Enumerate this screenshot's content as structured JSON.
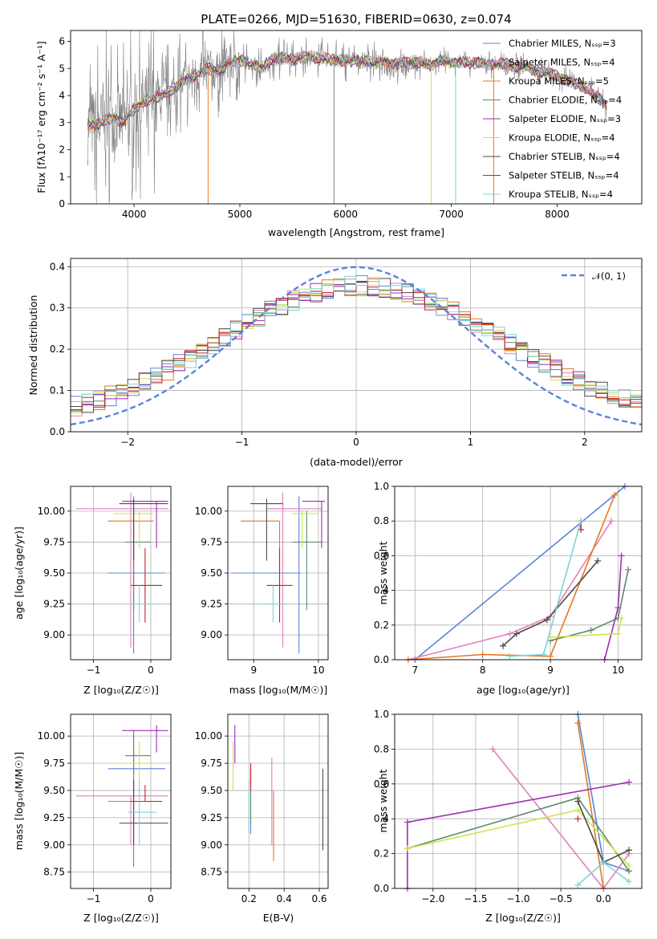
{
  "chart_data": [
    {
      "id": "spectrum",
      "type": "line",
      "title": "PLATE=0266, MJD=51630, FIBERID=0630, z=0.074",
      "xlabel": "wavelength [Angstrom, rest frame]",
      "ylabel": "Flux [fλ10⁻¹⁷ erg cm⁻² s⁻¹ A⁻¹]",
      "xlim": [
        3400,
        8800
      ],
      "ylim": [
        0,
        6.4
      ],
      "xticks": [
        4000,
        5000,
        6000,
        7000,
        8000
      ],
      "yticks": [
        0,
        1,
        2,
        3,
        4,
        5,
        6
      ],
      "continuum": [
        [
          3560,
          2.9
        ],
        [
          3700,
          3.0
        ],
        [
          3800,
          3.2
        ],
        [
          3900,
          3.0
        ],
        [
          4000,
          3.5
        ],
        [
          4100,
          3.8
        ],
        [
          4200,
          3.9
        ],
        [
          4300,
          4.1
        ],
        [
          4400,
          4.3
        ],
        [
          4500,
          4.6
        ],
        [
          4600,
          4.8
        ],
        [
          4700,
          5.0
        ],
        [
          4800,
          4.9
        ],
        [
          4900,
          5.2
        ],
        [
          5000,
          5.3
        ],
        [
          5100,
          5.2
        ],
        [
          5200,
          5.0
        ],
        [
          5300,
          5.3
        ],
        [
          5400,
          5.4
        ],
        [
          5500,
          5.3
        ],
        [
          5600,
          5.45
        ],
        [
          5700,
          5.4
        ],
        [
          5800,
          5.35
        ],
        [
          5900,
          5.3
        ],
        [
          6000,
          5.3
        ],
        [
          6100,
          5.25
        ],
        [
          6200,
          5.3
        ],
        [
          6300,
          5.2
        ],
        [
          6400,
          5.25
        ],
        [
          6500,
          5.15
        ],
        [
          6600,
          5.2
        ],
        [
          6700,
          5.25
        ],
        [
          6800,
          5.1
        ],
        [
          6900,
          5.3
        ],
        [
          7000,
          5.2
        ],
        [
          7100,
          5.25
        ],
        [
          7200,
          5.2
        ],
        [
          7300,
          5.2
        ],
        [
          7400,
          5.15
        ],
        [
          7500,
          5.2
        ],
        [
          7600,
          5.05
        ],
        [
          7700,
          5.05
        ],
        [
          7800,
          4.9
        ],
        [
          7900,
          4.85
        ],
        [
          8000,
          4.7
        ],
        [
          8100,
          4.55
        ],
        [
          8200,
          4.4
        ],
        [
          8300,
          4.2
        ],
        [
          8400,
          3.9
        ],
        [
          8470,
          3.6
        ]
      ],
      "legend": [
        "Chabrier MILES, N_SSP=3",
        "Salpeter MILES, N_SSP=4",
        "Kroupa MILES, N_SSP=5",
        "Chabrier ELODIE, N_SSP=4",
        "Salpeter ELODIE, N_SSP=3",
        "Kroupa ELODIE, N_SSP=4",
        "Chabrier STELIB, N_SSP=4",
        "Salpeter STELIB, N_SSP=4",
        "Kroupa STELIB, N_SSP=4"
      ],
      "legend_placement": "upper-right",
      "grid": false
    },
    {
      "id": "residuals",
      "type": "line",
      "xlabel": "(data-model)/error",
      "ylabel": "Normed distribution",
      "xlim": [
        -2.5,
        2.5
      ],
      "ylim": [
        0,
        0.42
      ],
      "xticks": [
        -2,
        -1,
        0,
        1,
        2
      ],
      "yticks": [
        0.0,
        0.1,
        0.2,
        0.3,
        0.4
      ],
      "gaussian_label": "𝒩(0, 1)",
      "legend_placement": "upper-right",
      "grid": true
    },
    {
      "id": "age_vs_Z",
      "type": "scatter",
      "xlabel": "Z [log₁₀(Z/Z☉)]",
      "ylabel": "age  [log₁₀(age/yr)]",
      "xlim": [
        -1.4,
        0.35
      ],
      "ylim": [
        8.8,
        10.2
      ],
      "xticks": [
        -1,
        0
      ],
      "yticks": [
        9.0,
        9.25,
        9.5,
        9.75,
        10.0
      ],
      "grid": true
    },
    {
      "id": "age_vs_mass",
      "type": "scatter",
      "xlabel": "mass [log₁₀(M/M☉)]",
      "xlim": [
        8.6,
        10.15
      ],
      "ylim": [
        8.8,
        10.2
      ],
      "xticks": [
        9,
        10
      ],
      "yticks": [
        9.0,
        9.25,
        9.5,
        9.75,
        10.0
      ],
      "grid": true
    },
    {
      "id": "weight_vs_age",
      "type": "line",
      "xlabel": "age  [log₁₀(age/yr)]",
      "ylabel": "mass weight",
      "xlim": [
        6.7,
        10.35
      ],
      "ylim": [
        0,
        1.0
      ],
      "xticks": [
        7,
        8,
        9,
        10
      ],
      "yticks": [
        0.0,
        0.2,
        0.4,
        0.6,
        0.8,
        1.0
      ],
      "grid": true
    },
    {
      "id": "mass_vs_Z",
      "type": "scatter",
      "xlabel": "Z [log₁₀(Z/Z☉)]",
      "ylabel": "mass [log₁₀(M/M☉)]",
      "xlim": [
        -1.4,
        0.35
      ],
      "ylim": [
        8.6,
        10.2
      ],
      "xticks": [
        -1,
        0
      ],
      "yticks": [
        8.75,
        9.0,
        9.25,
        9.5,
        9.75,
        10.0
      ],
      "grid": true
    },
    {
      "id": "mass_vs_ebv",
      "type": "scatter",
      "xlabel": "E(B-V)",
      "xlim": [
        0.08,
        0.65
      ],
      "ylim": [
        8.6,
        10.2
      ],
      "xticks": [
        0.2,
        0.4,
        0.6
      ],
      "yticks": [
        8.75,
        9.0,
        9.25,
        9.5,
        9.75,
        10.0
      ],
      "grid": true
    },
    {
      "id": "weight_vs_Z",
      "type": "line",
      "xlabel": "Z [log₁₀(Z/Z☉)]",
      "ylabel": "mass weight",
      "xlim": [
        -2.45,
        0.45
      ],
      "ylim": [
        0,
        1.0
      ],
      "xticks": [
        -2.0,
        -1.5,
        -1.0,
        -0.5,
        0.0
      ],
      "yticks": [
        0.0,
        0.2,
        0.4,
        0.6,
        0.8,
        1.0
      ],
      "grid": true
    }
  ],
  "series": [
    {
      "name": "Chabrier MILES",
      "color": "#5b84d6",
      "age": [
        [
          7.0,
          0.0
        ],
        [
          10.1,
          1.0
        ]
      ],
      "Z": [
        [
          -0.3,
          1.0
        ],
        [
          0.0,
          0.15
        ],
        [
          0.3,
          0.1
        ]
      ],
      "age_err": {
        "Z": [
          -0.3,
          -0.75,
          0.25
        ],
        "age": [
          9.5,
          8.85,
          10.12
        ],
        "mass": [
          9.7,
          8.65,
          9.73
        ],
        "m": [
          8.8,
          10.0
        ],
        "ebv": [
          0.21,
          9.1,
          9.7
        ]
      }
    },
    {
      "name": "Salpeter MILES",
      "color": "#e07fc0",
      "age": [
        [
          6.9,
          0.0
        ],
        [
          8.4,
          0.15
        ],
        [
          9.0,
          0.25
        ],
        [
          9.9,
          0.8
        ]
      ],
      "Z": [
        [
          -1.3,
          0.8
        ],
        [
          0.0,
          0.0
        ],
        [
          0.3,
          0.2
        ]
      ],
      "age_err": {
        "Z": [
          -0.35,
          -1.3,
          0.3
        ],
        "age": [
          10.02,
          8.9,
          10.15
        ],
        "mass": [
          9.45,
          9.2,
          10.05
        ],
        "m": [
          9.0,
          9.45
        ],
        "ebv": [
          0.33,
          9.0,
          9.8
        ]
      }
    },
    {
      "name": "Kroupa MILES",
      "color": "#e8761e",
      "age": [
        [
          6.9,
          0.0
        ],
        [
          8.0,
          0.03
        ],
        [
          9.0,
          0.02
        ],
        [
          9.95,
          0.95
        ]
      ],
      "Z": [
        [
          -0.3,
          0.95
        ],
        [
          0.0,
          0.0
        ]
      ],
      "age_err": {
        "Z": [
          -0.3,
          -0.75,
          0.05
        ],
        "age": [
          9.92,
          9.2,
          9.92
        ],
        "mass": [
          9.4,
          8.8,
          9.4
        ],
        "m": [
          9.0,
          9.9
        ],
        "ebv": [
          0.34,
          8.85,
          9.5
        ]
      }
    },
    {
      "name": "Chabrier ELODIE",
      "color": "#5e8a67",
      "age": [
        [
          9.0,
          0.11
        ],
        [
          9.6,
          0.17
        ],
        [
          10.0,
          0.24
        ],
        [
          10.15,
          0.52
        ]
      ],
      "Z": [
        [
          -2.3,
          0.23
        ],
        [
          -0.3,
          0.52
        ],
        [
          0.3,
          0.1
        ]
      ],
      "age_err": {
        "Z": [
          -0.3,
          -0.45,
          0.0
        ],
        "age": [
          9.75,
          9.2,
          10.0
        ],
        "mass": [
          9.82,
          9.6,
          10.05
        ],
        "m": [
          9.65,
          10.05
        ],
        "ebv": [
          0.21,
          9.2,
          9.72
        ]
      }
    },
    {
      "name": "Salpeter ELODIE",
      "color": "#9b2fb3",
      "age": [
        [
          9.8,
          0.0
        ],
        [
          10.0,
          0.3
        ],
        [
          10.05,
          0.6
        ]
      ],
      "Z": [
        [
          -2.3,
          0.0
        ],
        [
          -2.3,
          0.38
        ],
        [
          0.3,
          0.61
        ]
      ],
      "age_err": {
        "Z": [
          0.1,
          -0.5,
          0.3
        ],
        "age": [
          10.08,
          9.7,
          10.08
        ],
        "mass": [
          10.05,
          9.75,
          10.1
        ],
        "m": [
          9.85,
          10.1
        ],
        "ebv": [
          0.12,
          9.75,
          10.1
        ]
      }
    },
    {
      "name": "Kroupa ELODIE",
      "color": "#cde54e",
      "age": [
        [
          9.0,
          0.13
        ],
        [
          10.0,
          0.15
        ],
        [
          10.05,
          0.24
        ]
      ],
      "Z": [
        [
          -2.3,
          0.23
        ],
        [
          -0.3,
          0.45
        ],
        [
          0.3,
          0.13
        ]
      ],
      "age_err": {
        "Z": [
          -0.2,
          -0.65,
          0.05
        ],
        "age": [
          9.98,
          9.7,
          10.0
        ],
        "mass": [
          9.75,
          9.6,
          10.0
        ],
        "m": [
          9.6,
          9.95
        ],
        "ebv": [
          0.11,
          9.5,
          9.95
        ]
      }
    },
    {
      "name": "Chabrier STELIB",
      "color": "#4a4a4a",
      "age": [
        [
          8.3,
          0.08
        ],
        [
          8.5,
          0.15
        ],
        [
          8.95,
          0.23
        ],
        [
          9.7,
          0.57
        ]
      ],
      "Z": [
        [
          -0.3,
          0.5
        ],
        [
          0.0,
          0.15
        ],
        [
          0.3,
          0.22
        ]
      ],
      "age_err": {
        "Z": [
          -0.3,
          -0.55,
          0.3
        ],
        "age": [
          10.06,
          9.6,
          10.1
        ],
        "mass": [
          9.2,
          8.95,
          9.45
        ],
        "m": [
          9.0,
          9.6
        ],
        "ebv": [
          0.62,
          8.95,
          9.7
        ]
      }
    },
    {
      "name": "Salpeter STELIB",
      "color": "#c7202e",
      "age": [
        [
          9.45,
          0.8
        ],
        [
          9.45,
          0.75
        ]
      ],
      "Z": [
        [
          -0.3,
          0.4
        ]
      ],
      "age_err": {
        "Z": [
          -0.1,
          -0.35,
          0.2
        ],
        "age": [
          9.4,
          9.1,
          9.7
        ],
        "mass": [
          9.4,
          9.2,
          9.6
        ],
        "m": [
          9.4,
          9.55
        ],
        "ebv": [
          0.21,
          9.5,
          9.75
        ]
      }
    },
    {
      "name": "Kroupa STELIB",
      "color": "#7fd3d3",
      "age": [
        [
          8.4,
          0.02
        ],
        [
          8.9,
          0.03
        ],
        [
          9.45,
          0.8
        ]
      ],
      "Z": [
        [
          -0.3,
          0.02
        ],
        [
          0.0,
          0.15
        ],
        [
          0.3,
          0.04
        ]
      ],
      "age_err": {
        "Z": [
          -0.2,
          -0.4,
          0.1
        ],
        "age": [
          9.25,
          9.1,
          9.4
        ],
        "mass": [
          9.3,
          9.1,
          9.5
        ],
        "m": [
          9.0,
          9.6
        ],
        "ebv": [
          0.2,
          9.1,
          9.6
        ]
      }
    }
  ]
}
